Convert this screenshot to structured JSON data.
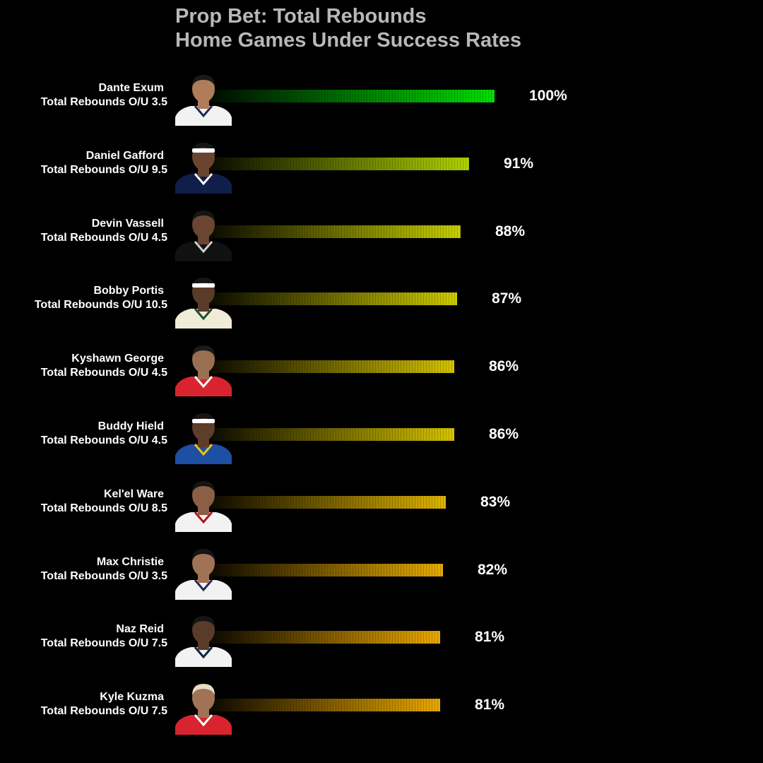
{
  "title_line1": "Prop Bet: Total Rebounds",
  "title_line2": "Home Games Under Success Rates",
  "colors": {
    "background": "#000000",
    "title": "#b8b8b8",
    "text": "#ffffff"
  },
  "chart_data": {
    "type": "bar",
    "orientation": "horizontal",
    "title": "Prop Bet: Total Rebounds\nHome Games Under Success Rates",
    "xlim": [
      0,
      100
    ],
    "grid": false,
    "legend": "none",
    "categories": [
      "Dante Exum",
      "Daniel Gafford",
      "Devin Vassell",
      "Bobby Portis",
      "Kyshawn George",
      "Buddy Hield",
      "Kel'el Ware",
      "Max Christie",
      "Naz Reid",
      "Kyle Kuzma"
    ],
    "rows": [
      {
        "player": "Dante Exum",
        "line": "Total Rebounds O/U 3.5",
        "value": 100,
        "label": "100%",
        "color": "#00e000",
        "jersey": "#f2f2f2",
        "trim": "#1d2a5a",
        "skin": "#b07d5a",
        "hair": "#1a1a1a",
        "headband": ""
      },
      {
        "player": "Daniel Gafford",
        "line": "Total Rebounds O/U 9.5",
        "value": 91,
        "label": "91%",
        "color": "#b3d300",
        "jersey": "#0f1f4a",
        "trim": "#ffffff",
        "skin": "#6b4430",
        "hair": "#151515",
        "headband": "#ffffff"
      },
      {
        "player": "Devin Vassell",
        "line": "Total Rebounds O/U 4.5",
        "value": 88,
        "label": "88%",
        "color": "#c8d000",
        "jersey": "#111111",
        "trim": "#d0d0d0",
        "skin": "#6a4532",
        "hair": "#151515",
        "headband": ""
      },
      {
        "player": "Bobby Portis",
        "line": "Total Rebounds O/U 10.5",
        "value": 87,
        "label": "87%",
        "color": "#cfcc00",
        "jersey": "#f1ecd8",
        "trim": "#1f4d2c",
        "skin": "#5a3a28",
        "hair": "#151515",
        "headband": "#ffffff"
      },
      {
        "player": "Kyshawn George",
        "line": "Total Rebounds O/U 4.5",
        "value": 86,
        "label": "86%",
        "color": "#d6c400",
        "jersey": "#d9242f",
        "trim": "#ffffff",
        "skin": "#9a6e50",
        "hair": "#1a1a1a",
        "headband": ""
      },
      {
        "player": "Buddy Hield",
        "line": "Total Rebounds O/U 4.5",
        "value": 86,
        "label": "86%",
        "color": "#d6c400",
        "jersey": "#1d4fa3",
        "trim": "#f5c400",
        "skin": "#5e3d2a",
        "hair": "#151515",
        "headband": "#ffffff"
      },
      {
        "player": "Kel'el Ware",
        "line": "Total Rebounds O/U 8.5",
        "value": 83,
        "label": "83%",
        "color": "#e0b400",
        "jersey": "#f2f2f2",
        "trim": "#b5121b",
        "skin": "#8a5f44",
        "hair": "#151515",
        "headband": ""
      },
      {
        "player": "Max Christie",
        "line": "Total Rebounds O/U 3.5",
        "value": 82,
        "label": "82%",
        "color": "#e8ab00",
        "jersey": "#f2f2f2",
        "trim": "#1d2a5a",
        "skin": "#a07256",
        "hair": "#151515",
        "headband": ""
      },
      {
        "player": "Naz Reid",
        "line": "Total Rebounds O/U 7.5",
        "value": 81,
        "label": "81%",
        "color": "#eca800",
        "jersey": "#f2f2f2",
        "trim": "#0c2340",
        "skin": "#5a3a28",
        "hair": "#151515",
        "headband": ""
      },
      {
        "player": "Kyle Kuzma",
        "line": "Total Rebounds O/U 7.5",
        "value": 81,
        "label": "81%",
        "color": "#eca800",
        "jersey": "#d9242f",
        "trim": "#ffffff",
        "skin": "#a07256",
        "hair": "#e8dcc0",
        "headband": ""
      }
    ]
  }
}
